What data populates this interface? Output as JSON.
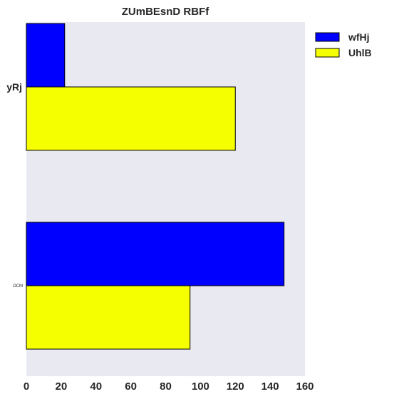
{
  "chart_data": {
    "type": "bar",
    "orientation": "horizontal",
    "title": "ZUmBEsnD  RBFf",
    "xlabel": "",
    "ylabel": "",
    "categories": [
      "yRj",
      "DCM"
    ],
    "series": [
      {
        "name": "wfHj",
        "values": [
          22,
          148
        ],
        "color": "#0000ff"
      },
      {
        "name": "UhlB",
        "values": [
          120,
          94
        ],
        "color": "#f5ff00"
      }
    ],
    "xlim": [
      0,
      160
    ],
    "xticks": [
      0,
      20,
      40,
      60,
      80,
      100,
      120,
      140,
      160
    ],
    "grid": false,
    "legend": "top-right",
    "background_color": "#e9e9f2"
  }
}
